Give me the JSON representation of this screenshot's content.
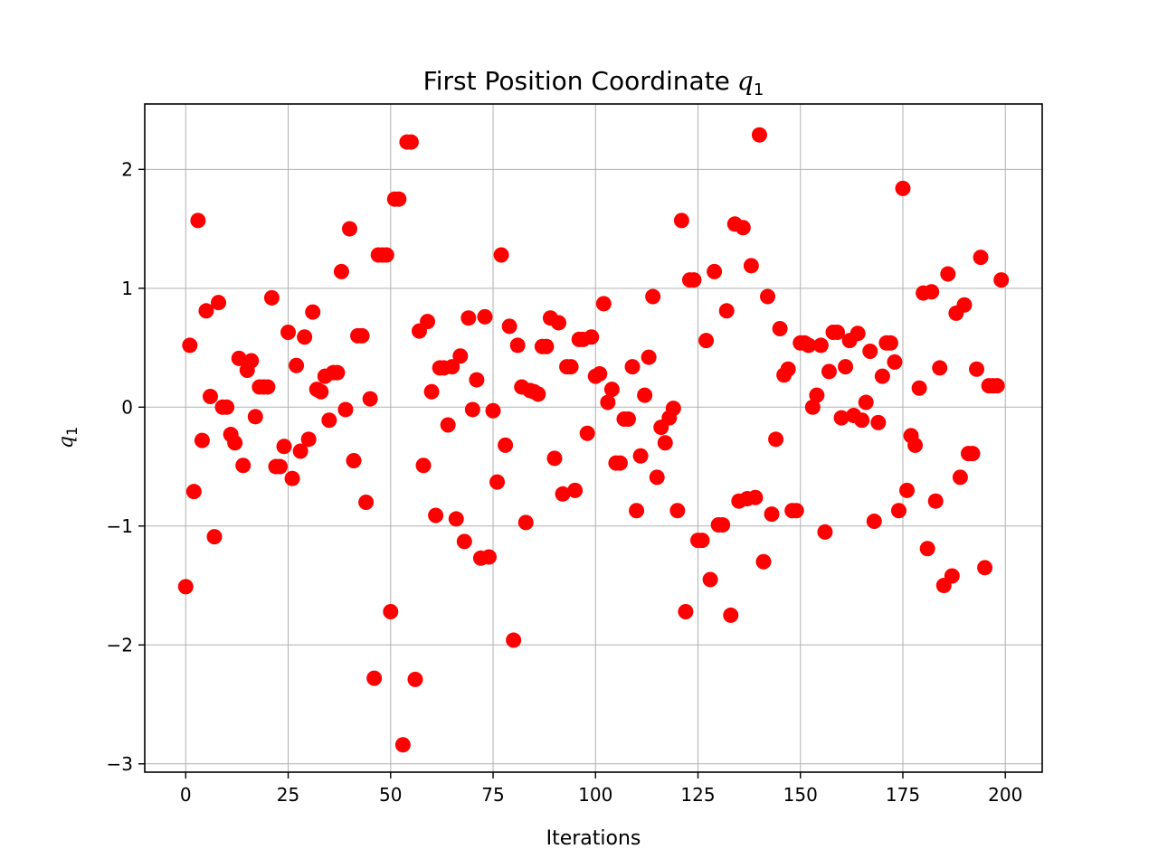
{
  "chart_data": {
    "type": "scatter",
    "title": "First Position Coordinate",
    "title_math": {
      "symbol": "q",
      "subscript": "1"
    },
    "xlabel": "Iterations",
    "ylabel": {
      "symbol": "q",
      "subscript": "1"
    },
    "xlim": [
      -10,
      209
    ],
    "ylim": [
      -3.07,
      2.55
    ],
    "xticks": [
      0,
      25,
      50,
      75,
      100,
      125,
      150,
      175,
      200
    ],
    "yticks": [
      2,
      1,
      0,
      -1,
      -2,
      -3
    ],
    "ytick_labels": [
      "2",
      "1",
      "0",
      "−1",
      "−2",
      "−3"
    ],
    "grid": true,
    "marker_color": "#ff0000",
    "series": [
      {
        "x": [
          0,
          1,
          2,
          3,
          4,
          5,
          6,
          7,
          8,
          9,
          10,
          11,
          12,
          13,
          14,
          15,
          16,
          17,
          18,
          19,
          20,
          21,
          22,
          23,
          24,
          25,
          26,
          27,
          28,
          29,
          30,
          31,
          32,
          33,
          34,
          35,
          36,
          37,
          38,
          39,
          40,
          41,
          42,
          43,
          44,
          45,
          46,
          47,
          48,
          49,
          50,
          51,
          52,
          53,
          54,
          55,
          56,
          57,
          58,
          59,
          60,
          61,
          62,
          63,
          64,
          65,
          66,
          67,
          68,
          69,
          70,
          71,
          72,
          73,
          74,
          75,
          76,
          77,
          78,
          79,
          80,
          81,
          82,
          83,
          84,
          85,
          86,
          87,
          88,
          89,
          90,
          91,
          92,
          93,
          94,
          95,
          96,
          97,
          98,
          99,
          100,
          101,
          102,
          103,
          104,
          105,
          106,
          107,
          108,
          109,
          110,
          111,
          112,
          113,
          114,
          115,
          116,
          117,
          118,
          119,
          120,
          121,
          122,
          123,
          124,
          125,
          126,
          127,
          128,
          129,
          130,
          131,
          132,
          133,
          134,
          135,
          136,
          137,
          138,
          139,
          140,
          141,
          142,
          143,
          144,
          145,
          146,
          147,
          148,
          149,
          150,
          151,
          152,
          153,
          154,
          155,
          156,
          157,
          158,
          159,
          160,
          161,
          162,
          163,
          164,
          165,
          166,
          167,
          168,
          169,
          170,
          171,
          172,
          173,
          174,
          175,
          176,
          177,
          178,
          179,
          180,
          181,
          182,
          183,
          184,
          185,
          186,
          187,
          188,
          189,
          190,
          191,
          192,
          193,
          194,
          195,
          196,
          197,
          198,
          199
        ],
        "y": [
          -1.51,
          0.52,
          -0.71,
          1.57,
          -0.28,
          0.81,
          0.09,
          -1.09,
          0.88,
          0.0,
          0.0,
          -0.23,
          -0.3,
          0.41,
          -0.49,
          0.31,
          0.39,
          -0.08,
          0.17,
          0.17,
          0.17,
          0.92,
          -0.5,
          -0.5,
          -0.33,
          0.63,
          -0.6,
          0.35,
          -0.37,
          0.59,
          -0.27,
          0.8,
          0.15,
          0.13,
          0.26,
          -0.11,
          0.29,
          0.29,
          1.14,
          -0.02,
          1.5,
          -0.45,
          0.6,
          0.6,
          -0.8,
          0.07,
          -2.28,
          1.28,
          1.28,
          1.28,
          -1.72,
          1.75,
          1.75,
          -2.84,
          2.23,
          2.23,
          -2.29,
          0.64,
          -0.49,
          0.72,
          0.13,
          -0.91,
          0.33,
          0.33,
          -0.15,
          0.34,
          -0.94,
          0.43,
          -1.13,
          0.75,
          -0.02,
          0.23,
          -1.27,
          0.76,
          -1.26,
          -0.03,
          -0.63,
          1.28,
          -0.32,
          0.68,
          -1.96,
          0.52,
          0.17,
          -0.97,
          0.14,
          0.13,
          0.11,
          0.51,
          0.51,
          0.75,
          -0.43,
          0.71,
          -0.73,
          0.34,
          0.34,
          -0.7,
          0.57,
          0.57,
          -0.22,
          0.59,
          0.26,
          0.28,
          0.87,
          0.04,
          0.15,
          -0.47,
          -0.47,
          -0.1,
          -0.1,
          0.34,
          -0.87,
          -0.41,
          0.1,
          0.42,
          0.93,
          -0.59,
          -0.17,
          -0.3,
          -0.09,
          -0.01,
          -0.87,
          1.57,
          -1.72,
          1.07,
          1.07,
          -1.12,
          -1.12,
          0.56,
          -1.45,
          1.14,
          -0.99,
          -0.99,
          0.81,
          -1.75,
          1.54,
          -0.79,
          1.51,
          -0.77,
          1.19,
          -0.76,
          2.29,
          -1.3,
          0.93,
          -0.9,
          -0.27,
          0.66,
          0.27,
          0.32,
          -0.87,
          -0.87,
          0.54,
          0.54,
          0.52,
          0.0,
          0.1,
          0.52,
          -1.05,
          0.3,
          0.63,
          0.63,
          -0.09,
          0.34,
          0.56,
          -0.07,
          0.62,
          -0.11,
          0.04,
          0.47,
          -0.96,
          -0.13,
          0.26,
          0.54,
          0.54,
          0.38,
          -0.87,
          1.84,
          -0.7,
          -0.24,
          -0.32,
          0.16,
          0.96,
          -1.19,
          0.97,
          -0.79,
          0.33,
          -1.5,
          1.12,
          -1.42,
          0.79,
          -0.59,
          0.86,
          -0.39,
          -0.39,
          0.32,
          1.26,
          -1.35,
          0.18,
          0.18,
          0.18,
          1.07
        ]
      }
    ]
  }
}
